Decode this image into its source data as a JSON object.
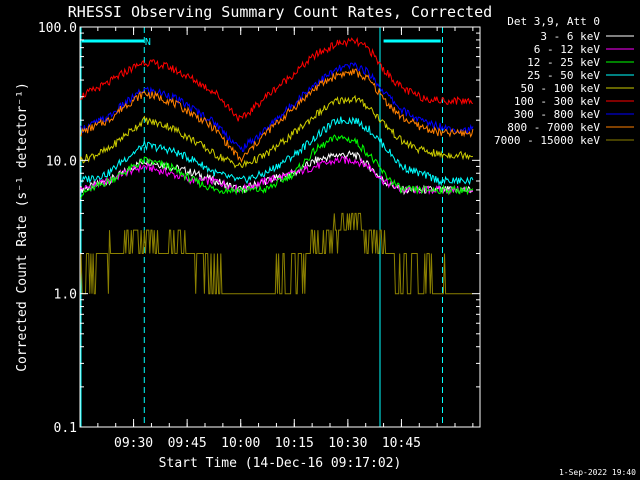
{
  "chart_data": {
    "type": "line",
    "title": "RHESSI Observing Summary Count Rates, Corrected",
    "xlabel": "Start Time (14-Dec-16 09:17:02)",
    "ylabel": "Corrected Count Rate (s⁻¹ detector⁻¹)",
    "yscale": "log",
    "ylim": [
      0.1,
      100.0
    ],
    "xlim_minutes": [
      0,
      112
    ],
    "x_ticks": [
      {
        "label": "09:30",
        "minute": 15.0
      },
      {
        "label": "09:45",
        "minute": 30.0
      },
      {
        "label": "10:00",
        "minute": 45.0
      },
      {
        "label": "10:15",
        "minute": 60.0
      },
      {
        "label": "10:30",
        "minute": 75.0
      },
      {
        "label": "10:45",
        "minute": 90.0
      }
    ],
    "y_ticks": [
      "0.1",
      "1.0",
      "10.0",
      "100.0"
    ],
    "grid": false,
    "legend_placement": "right",
    "legend_title": "Det 3,9, Att 0",
    "timestamp": "1-Sep-2022 19:40",
    "annotations": [
      {
        "text": "N",
        "minute": 19.0
      }
    ],
    "shaded_intervals_minutes": [
      [
        0.5,
        18.0
      ],
      [
        85.0,
        101.0
      ]
    ],
    "night_markers_minutes": [
      {
        "minute": 18.0,
        "style": "dashed"
      },
      {
        "minute": 84.0,
        "style": "solid"
      },
      {
        "minute": 101.5,
        "style": "dashed"
      }
    ],
    "x_minutes": [
      0,
      8,
      12,
      18,
      25,
      32,
      38,
      45,
      52,
      60,
      66,
      72,
      77,
      81,
      85,
      90,
      95,
      101,
      106,
      110
    ],
    "series": [
      {
        "name": "3 - 6 keV",
        "color": "#ffffff",
        "values": [
          6,
          7,
          8,
          10,
          9,
          8,
          7,
          6,
          7,
          8,
          10,
          11,
          11,
          9,
          7,
          6,
          6,
          6,
          6,
          6
        ]
      },
      {
        "name": "6 - 12 keV",
        "color": "#ff00ff",
        "values": [
          6,
          7,
          8,
          9,
          8,
          7,
          7,
          6,
          7,
          8,
          9,
          10,
          10,
          9,
          7,
          6,
          6,
          6,
          6,
          6
        ]
      },
      {
        "name": "12 - 25 keV",
        "color": "#00ff00",
        "values": [
          5.5,
          7,
          8,
          10,
          9,
          7,
          6,
          6,
          6,
          8,
          12,
          15,
          14,
          11,
          8,
          6,
          6,
          6,
          6,
          6
        ]
      },
      {
        "name": "25 - 50 keV",
        "color": "#00ffff",
        "values": [
          7,
          8,
          10,
          13,
          12,
          10,
          8,
          7,
          8,
          11,
          15,
          20,
          20,
          17,
          13,
          9,
          8,
          7,
          7,
          7
        ]
      },
      {
        "name": "50 - 100 keV",
        "color": "#cccc00",
        "values": [
          10,
          12,
          15,
          20,
          18,
          14,
          11,
          9,
          11,
          16,
          22,
          28,
          29,
          25,
          19,
          14,
          12,
          11,
          11,
          11
        ]
      },
      {
        "name": "100 - 300 keV",
        "color": "#ff0000",
        "values": [
          30,
          38,
          45,
          55,
          50,
          40,
          32,
          20,
          30,
          45,
          62,
          75,
          78,
          68,
          48,
          35,
          30,
          28,
          28,
          28
        ]
      },
      {
        "name": "300 - 800 keV",
        "color": "#0000ff",
        "values": [
          17,
          21,
          26,
          34,
          31,
          24,
          19,
          12,
          17,
          27,
          38,
          48,
          52,
          45,
          33,
          24,
          20,
          18,
          17,
          17
        ]
      },
      {
        "name": "800 - 7000 keV",
        "color": "#ff8000",
        "values": [
          16,
          20,
          25,
          32,
          28,
          22,
          17,
          10,
          16,
          25,
          35,
          44,
          46,
          40,
          29,
          21,
          18,
          16,
          16,
          16
        ]
      },
      {
        "name": "7000 - 15000 keV",
        "color": "#8b8000",
        "values": [
          1.5,
          2,
          2.2,
          2.5,
          2.3,
          1.8,
          1.3,
          1,
          1.1,
          1.5,
          2.2,
          3,
          3.5,
          3,
          2,
          1.5,
          1.3,
          1.2,
          1.1,
          1
        ]
      }
    ]
  }
}
